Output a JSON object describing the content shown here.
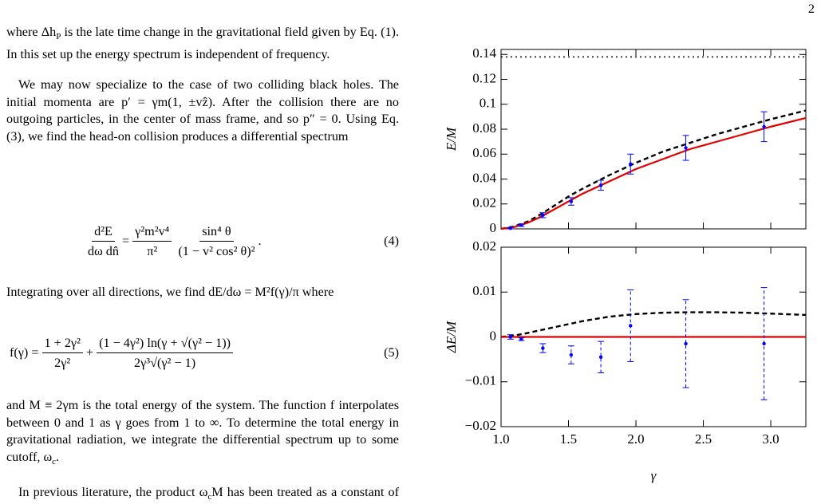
{
  "page_number": "2",
  "paragraphs": [
    [
      "where Δh",
      "P",
      " is the late time change in the gravitational field given by Eq. (1). In this set up the energy spectrum is independent of frequency."
    ],
    [
      "We may now specialize to the case of two colliding black holes. The initial momenta are p′ = γm(1, ±vẑ). After the collision there are no outgoing particles, in the center of mass frame, and so p″ = 0. Using Eq. (3), we find the head-on collision produces a differential spectrum"
    ],
    [
      "Integrating over all directions, we find dE/dω = M²f(γ)/π where"
    ],
    [
      "and M ≡ 2γm is the total energy of the system. The function f interpolates between 0 and 1 as γ goes from 1 to ∞. To determine the total energy in gravitational radiation, we integrate the differential spectrum up to some cutoff, ω",
      "c",
      "."
    ],
    [
      "In previous literature, the product ω",
      "c",
      "M has been treated as a constant of order unity and determined"
    ]
  ],
  "equation_4": {
    "lhs_num": "d²E",
    "lhs_den": "dω dn̂",
    "equals": "=",
    "a_num": "γ²m²v⁴",
    "a_den": "π²",
    "b_num": "sin⁴ θ",
    "b_den": "(1 − v² cos² θ)²",
    "end": ".",
    "number": "(4)"
  },
  "equation_5": {
    "lhs": "f(γ) =",
    "a_num": "1 + 2γ²",
    "a_den": "2γ²",
    "plus": "+",
    "b_num": "(1 − 4γ²) ln(γ + √(γ² − 1))",
    "b_den": "2γ³√(γ² − 1)",
    "number": "(5)"
  },
  "chart_data": [
    {
      "type": "line",
      "ylabel": "E/M",
      "xlim": [
        1,
        3.26
      ],
      "ylim": [
        0,
        0.144
      ],
      "yticks": [
        0,
        0.02,
        0.04,
        0.06,
        0.08,
        0.1,
        0.12,
        0.14
      ],
      "series": [
        {
          "color": "#000000",
          "dash": "dotted",
          "x": [
            1,
            3.26
          ],
          "values": [
            0.138,
            0.138
          ]
        },
        {
          "color": "#000000",
          "dash": "dashed",
          "x": [
            1.0,
            1.1,
            1.2,
            1.3,
            1.4,
            1.5,
            1.6,
            1.8,
            2.0,
            2.2,
            2.4,
            2.6,
            2.8,
            3.0,
            3.26
          ],
          "values": [
            0,
            0.002,
            0.006,
            0.012,
            0.019,
            0.026,
            0.032,
            0.043,
            0.053,
            0.062,
            0.069,
            0.076,
            0.082,
            0.088,
            0.095
          ]
        },
        {
          "color": "#e00000",
          "dash": "solid",
          "x": [
            1.0,
            1.1,
            1.2,
            1.3,
            1.4,
            1.5,
            1.6,
            1.8,
            2.0,
            2.2,
            2.4,
            2.6,
            2.8,
            3.0,
            3.26
          ],
          "values": [
            0,
            0.0015,
            0.005,
            0.01,
            0.016,
            0.022,
            0.028,
            0.038,
            0.048,
            0.056,
            0.064,
            0.07,
            0.076,
            0.082,
            0.089
          ]
        },
        {
          "color": "#0000ff",
          "dash": "points",
          "error_dash": "solid",
          "x": [
            1.07,
            1.15,
            1.31,
            1.52,
            1.74,
            1.96,
            2.37,
            2.95
          ],
          "values": [
            0.0005,
            0.003,
            0.011,
            0.022,
            0.035,
            0.052,
            0.065,
            0.082
          ],
          "errors": [
            0.0005,
            0.001,
            0.002,
            0.003,
            0.004,
            0.008,
            0.01,
            0.012
          ]
        }
      ]
    },
    {
      "type": "line",
      "ylabel": "ΔE/M",
      "xlabel": "γ",
      "xlim": [
        1,
        3.26
      ],
      "ylim": [
        -0.02,
        0.02
      ],
      "xticks": [
        {
          "value": 1,
          "label": "1.0"
        },
        1.5,
        {
          "value": 2,
          "label": "2.0"
        },
        2.5,
        {
          "value": 3,
          "label": "3.0"
        }
      ],
      "yticks": [
        {
          "value": -0.02,
          "label": "−0.02"
        },
        {
          "value": -0.01,
          "label": "−0.01"
        },
        0,
        0.01,
        0.02
      ],
      "series": [
        {
          "color": "#000000",
          "dash": "dashed",
          "x": [
            1.0,
            1.1,
            1.2,
            1.4,
            1.6,
            1.8,
            2.0,
            2.2,
            2.4,
            2.6,
            2.8,
            3.0,
            3.26
          ],
          "values": [
            0,
            0.0003,
            0.0009,
            0.0022,
            0.0035,
            0.0045,
            0.0051,
            0.0054,
            0.0055,
            0.0055,
            0.0054,
            0.0052,
            0.0049
          ]
        },
        {
          "color": "#e00000",
          "dash": "solid",
          "x": [
            1,
            3.26
          ],
          "values": [
            0,
            0
          ]
        },
        {
          "color": "#0000ff",
          "dash": "points",
          "error_dash": "dashed",
          "x": [
            1.07,
            1.15,
            1.31,
            1.52,
            1.74,
            1.96,
            2.37,
            2.95
          ],
          "values": [
            0,
            -0.0005,
            -0.0025,
            -0.004,
            -0.0045,
            0.0025,
            -0.0015,
            -0.0015
          ],
          "errors": [
            0.0005,
            0.0003,
            0.001,
            0.002,
            0.0035,
            0.008,
            0.0098,
            0.0125
          ]
        }
      ]
    }
  ]
}
